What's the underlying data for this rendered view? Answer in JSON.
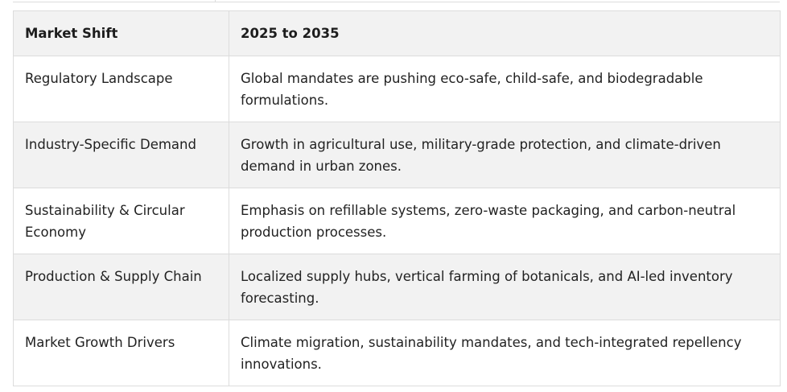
{
  "table": {
    "headers": [
      "Market Shift",
      "2025 to 2035"
    ],
    "rows": [
      {
        "shift": "Regulatory Landscape",
        "outlook": "Global mandates are pushing eco-safe, child-safe, and biodegradable formulations."
      },
      {
        "shift": "Industry-Specific Demand",
        "outlook": "Growth in agricultural use, military-grade protection, and climate-driven demand in urban zones."
      },
      {
        "shift": "Sustainability & Circular Economy",
        "outlook": "Emphasis on refillable systems, zero-waste packaging, and carbon-neutral production processes."
      },
      {
        "shift": "Production & Supply Chain",
        "outlook": "Localized supply hubs, vertical farming of botanicals, and AI-led inventory forecasting."
      },
      {
        "shift": "Market Growth Drivers",
        "outlook": "Climate migration, sustainability mandates, and tech-integrated repellency innovations."
      }
    ]
  }
}
